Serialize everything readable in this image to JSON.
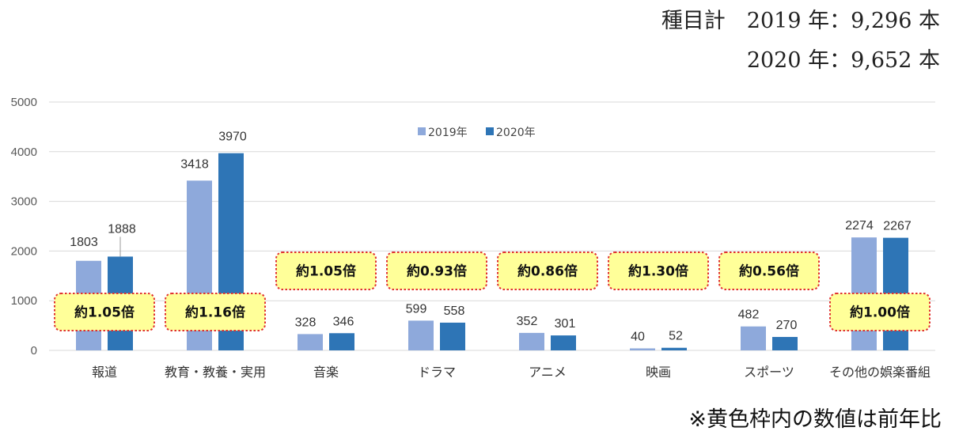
{
  "summary": {
    "line1": "種目計　2019 年：9,296 本",
    "line2": "2020 年：9,652 本"
  },
  "footnote": "※黄色枠内の数値は前年比",
  "colors": {
    "series2019": "#8EA9DB",
    "series2020": "#2E75B6",
    "ratio_fill": "#FFFF99",
    "ratio_border": "#E03030",
    "grid": "#D9D9D9"
  },
  "chart_data": {
    "type": "bar",
    "categories": [
      "報道",
      "教育・教養・実用",
      "音楽",
      "ドラマ",
      "アニメ",
      "映画",
      "スポーツ",
      "その他の娯楽番組"
    ],
    "series": [
      {
        "name": "2019年",
        "values": [
          1803,
          3418,
          328,
          599,
          352,
          40,
          482,
          2274
        ]
      },
      {
        "name": "2020年",
        "values": [
          1888,
          3970,
          346,
          558,
          301,
          52,
          270,
          2267
        ]
      }
    ],
    "ratios": [
      "約1.05倍",
      "約1.16倍",
      "約1.05倍",
      "約0.93倍",
      "約0.86倍",
      "約1.30倍",
      "約0.56倍",
      "約1.00倍"
    ],
    "yticks": [
      0,
      1000,
      2000,
      3000,
      4000,
      5000
    ],
    "ylim": [
      0,
      5000
    ],
    "grid": true,
    "legend_position": "top-center"
  }
}
